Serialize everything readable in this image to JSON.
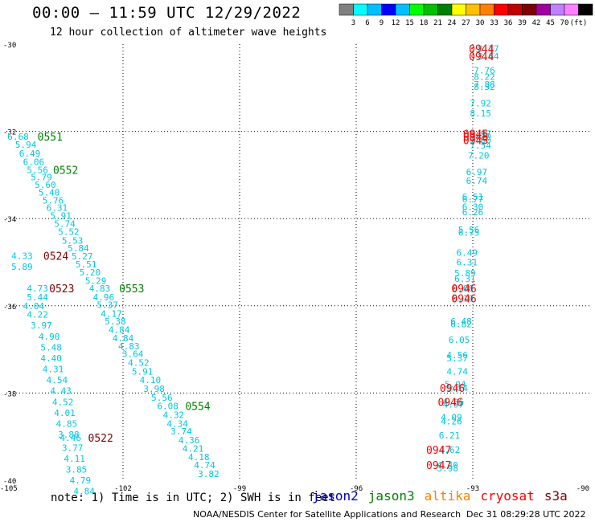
{
  "header": {
    "title": "00:00 — 11:59 UTC 12/29/2022",
    "subtitle": "12 hour collection of altimeter wave heights"
  },
  "colorbar": {
    "colors": [
      "#808080",
      "#00ffff",
      "#00bfff",
      "#0000ff",
      "#00c0ff",
      "#00ff00",
      "#00c000",
      "#008000",
      "#ffff00",
      "#ffc000",
      "#ff8000",
      "#ff0000",
      "#c00000",
      "#800000",
      "#a000a0",
      "#c080ff",
      "#ff80ff",
      "#000000"
    ],
    "labels": [
      "3",
      "6",
      "9",
      "12",
      "15",
      "18",
      "21",
      "24",
      "27",
      "30",
      "33",
      "36",
      "39",
      "42",
      "45",
      "70",
      "(ft)"
    ]
  },
  "footer": {
    "note": "note: 1) Time is in UTC; 2) SWH is in feet",
    "credit": "NOAA/NESDIS Center for Satellite Applications and Research",
    "timestamp": "Dec 31 08:29:28 UTC 2022"
  },
  "legend": [
    {
      "name": "jason2",
      "color": "#0000cc"
    },
    {
      "name": "jason3",
      "color": "#008000"
    },
    {
      "name": "altika",
      "color": "#ff8000"
    },
    {
      "name": "cryosat",
      "color": "#ff0000"
    },
    {
      "name": "s3a",
      "color": "#800000"
    }
  ],
  "chart_data": {
    "type": "scatter",
    "title": "00:00 — 11:59 UTC 12/29/2022",
    "xlim": [
      -105,
      -90
    ],
    "ylim": [
      -40,
      -30
    ],
    "xticks": [
      "-105",
      "-102",
      "-99",
      "-96",
      "-93",
      "-90"
    ],
    "yticks": [
      "-30",
      "-32",
      "-34",
      "-36",
      "-38",
      "-40"
    ],
    "grid": true,
    "swh_color": "#00c8e0",
    "swh_values": [
      {
        "x": -92.6,
        "y": -30.1,
        "v": "8.17"
      },
      {
        "x": -92.6,
        "y": -30.28,
        "v": "8.64"
      },
      {
        "x": -92.7,
        "y": -30.6,
        "v": "7.76"
      },
      {
        "x": -92.7,
        "y": -30.75,
        "v": "8.22"
      },
      {
        "x": -92.7,
        "y": -30.92,
        "v": "7.88"
      },
      {
        "x": -92.7,
        "y": -30.98,
        "v": "8.32"
      },
      {
        "x": -92.8,
        "y": -31.35,
        "v": "7.92"
      },
      {
        "x": -92.8,
        "y": -31.58,
        "v": "8.15"
      },
      {
        "x": -92.8,
        "y": -32.05,
        "v": "6.97"
      },
      {
        "x": -92.8,
        "y": -32.12,
        "v": "7.20"
      },
      {
        "x": -92.8,
        "y": -32.2,
        "v": "7.60"
      },
      {
        "x": -92.8,
        "y": -32.32,
        "v": "7.54"
      },
      {
        "x": -92.85,
        "y": -32.55,
        "v": "7.20"
      },
      {
        "x": -92.9,
        "y": -32.93,
        "v": "6.97"
      },
      {
        "x": -92.9,
        "y": -33.13,
        "v": "6.74"
      },
      {
        "x": -93.0,
        "y": -33.5,
        "v": "6.51"
      },
      {
        "x": -93.0,
        "y": -33.55,
        "v": "6.77"
      },
      {
        "x": -93.0,
        "y": -33.73,
        "v": "6.30"
      },
      {
        "x": -93.0,
        "y": -33.85,
        "v": "6.26"
      },
      {
        "x": -93.1,
        "y": -34.25,
        "v": "5.56"
      },
      {
        "x": -93.1,
        "y": -34.32,
        "v": "6.75"
      },
      {
        "x": -93.15,
        "y": -34.78,
        "v": "6.49"
      },
      {
        "x": -93.15,
        "y": -35.0,
        "v": "6.31"
      },
      {
        "x": -93.2,
        "y": -35.25,
        "v": "5.89"
      },
      {
        "x": -93.2,
        "y": -35.38,
        "v": "6.31"
      },
      {
        "x": -93.25,
        "y": -35.6,
        "v": "6.00"
      },
      {
        "x": -93.25,
        "y": -35.83,
        "v": "6.19"
      },
      {
        "x": -93.3,
        "y": -36.35,
        "v": "6.48"
      },
      {
        "x": -93.3,
        "y": -36.42,
        "v": "6.82"
      },
      {
        "x": -93.35,
        "y": -36.78,
        "v": "6.05"
      },
      {
        "x": -93.4,
        "y": -37.13,
        "v": "4.56"
      },
      {
        "x": -93.4,
        "y": -37.2,
        "v": "5.37"
      },
      {
        "x": -93.4,
        "y": -37.5,
        "v": "4.74"
      },
      {
        "x": -93.45,
        "y": -37.8,
        "v": "5.04"
      },
      {
        "x": -93.4,
        "y": -37.88,
        "v": "5.14"
      },
      {
        "x": -93.5,
        "y": -38.2,
        "v": "4.86"
      },
      {
        "x": -93.5,
        "y": -38.26,
        "v": "4.97"
      },
      {
        "x": -93.55,
        "y": -38.55,
        "v": "4.09"
      },
      {
        "x": -93.55,
        "y": -38.65,
        "v": "4.26"
      },
      {
        "x": -93.6,
        "y": -38.97,
        "v": "6.21"
      },
      {
        "x": -93.6,
        "y": -39.3,
        "v": "4.62"
      },
      {
        "x": -93.65,
        "y": -39.65,
        "v": "4.40"
      },
      {
        "x": -93.65,
        "y": -39.72,
        "v": "3.98"
      },
      {
        "x": -104.7,
        "y": -32.12,
        "v": "6.68"
      },
      {
        "x": -104.5,
        "y": -32.3,
        "v": "5.94"
      },
      {
        "x": -104.4,
        "y": -32.5,
        "v": "6.49"
      },
      {
        "x": -104.3,
        "y": -32.7,
        "v": "6.06"
      },
      {
        "x": -104.2,
        "y": -32.88,
        "v": "5.56"
      },
      {
        "x": -104.1,
        "y": -33.05,
        "v": "5.79"
      },
      {
        "x": -104.0,
        "y": -33.22,
        "v": "5.60"
      },
      {
        "x": -103.9,
        "y": -33.4,
        "v": "5.40"
      },
      {
        "x": -103.8,
        "y": -33.58,
        "v": "5.76"
      },
      {
        "x": -103.7,
        "y": -33.75,
        "v": "6.31"
      },
      {
        "x": -103.6,
        "y": -33.93,
        "v": "5.91"
      },
      {
        "x": -103.5,
        "y": -34.12,
        "v": "5.74"
      },
      {
        "x": -103.4,
        "y": -34.3,
        "v": "5.52"
      },
      {
        "x": -103.3,
        "y": -34.5,
        "v": "5.53"
      },
      {
        "x": -103.15,
        "y": -34.68,
        "v": "5.84"
      },
      {
        "x": -103.05,
        "y": -34.86,
        "v": "5.27"
      },
      {
        "x": -102.95,
        "y": -35.05,
        "v": "5.51"
      },
      {
        "x": -102.85,
        "y": -35.23,
        "v": "5.20"
      },
      {
        "x": -102.7,
        "y": -35.42,
        "v": "5.29"
      },
      {
        "x": -102.6,
        "y": -35.6,
        "v": "4.83"
      },
      {
        "x": -102.5,
        "y": -35.8,
        "v": "4.96"
      },
      {
        "x": -102.4,
        "y": -35.98,
        "v": "5.37"
      },
      {
        "x": -102.3,
        "y": -36.18,
        "v": "4.17"
      },
      {
        "x": -102.2,
        "y": -36.35,
        "v": "5.38"
      },
      {
        "x": -102.1,
        "y": -36.55,
        "v": "4.84"
      },
      {
        "x": -102.0,
        "y": -36.74,
        "v": "4.84"
      },
      {
        "x": -101.85,
        "y": -36.92,
        "v": "4.83"
      },
      {
        "x": -101.75,
        "y": -37.1,
        "v": "3.64"
      },
      {
        "x": -101.6,
        "y": -37.3,
        "v": "4.52"
      },
      {
        "x": -101.5,
        "y": -37.5,
        "v": "5.91"
      },
      {
        "x": -101.3,
        "y": -37.7,
        "v": "4.10"
      },
      {
        "x": -101.2,
        "y": -37.9,
        "v": "3.98"
      },
      {
        "x": -101.0,
        "y": -38.1,
        "v": "5.56"
      },
      {
        "x": -100.85,
        "y": -38.3,
        "v": "6.08"
      },
      {
        "x": -100.7,
        "y": -38.5,
        "v": "4.32"
      },
      {
        "x": -100.6,
        "y": -38.7,
        "v": "4.34"
      },
      {
        "x": -100.5,
        "y": -38.88,
        "v": "3.74"
      },
      {
        "x": -100.3,
        "y": -39.08,
        "v": "4.36"
      },
      {
        "x": -100.2,
        "y": -39.27,
        "v": "4.21"
      },
      {
        "x": -100.05,
        "y": -39.47,
        "v": "4.18"
      },
      {
        "x": -99.9,
        "y": -39.65,
        "v": "4.74"
      },
      {
        "x": -99.8,
        "y": -39.85,
        "v": "3.82"
      },
      {
        "x": -104.6,
        "y": -34.85,
        "v": "4.33"
      },
      {
        "x": -104.6,
        "y": -35.1,
        "v": "5.89"
      },
      {
        "x": -104.2,
        "y": -35.6,
        "v": "4.73"
      },
      {
        "x": -104.2,
        "y": -35.8,
        "v": "5.44"
      },
      {
        "x": -104.3,
        "y": -36.0,
        "v": "4.04"
      },
      {
        "x": -104.2,
        "y": -36.2,
        "v": "4.22"
      },
      {
        "x": -104.1,
        "y": -36.45,
        "v": "3.97"
      },
      {
        "x": -103.9,
        "y": -36.7,
        "v": "4.90"
      },
      {
        "x": -103.85,
        "y": -36.95,
        "v": "5.48"
      },
      {
        "x": -103.85,
        "y": -37.2,
        "v": "4.40"
      },
      {
        "x": -103.8,
        "y": -37.45,
        "v": "4.31"
      },
      {
        "x": -103.7,
        "y": -37.7,
        "v": "4.54"
      },
      {
        "x": -103.6,
        "y": -37.95,
        "v": "4.43"
      },
      {
        "x": -103.55,
        "y": -38.2,
        "v": "4.52"
      },
      {
        "x": -103.5,
        "y": -38.45,
        "v": "4.01"
      },
      {
        "x": -103.45,
        "y": -38.7,
        "v": "4.85"
      },
      {
        "x": -103.4,
        "y": -38.95,
        "v": "3.88"
      },
      {
        "x": -103.35,
        "y": -39.02,
        "v": "4.46"
      },
      {
        "x": -103.3,
        "y": -39.25,
        "v": "3.77"
      },
      {
        "x": -103.25,
        "y": -39.5,
        "v": "4.11"
      },
      {
        "x": -103.2,
        "y": -39.75,
        "v": "3.85"
      },
      {
        "x": -103.1,
        "y": -40.0,
        "v": "4.79"
      },
      {
        "x": -103.0,
        "y": -40.25,
        "v": "4.84"
      }
    ],
    "times": [
      {
        "x": -93.1,
        "y": -30.1,
        "v": "0944",
        "color": "#ff0000"
      },
      {
        "x": -93.1,
        "y": -30.28,
        "v": "0944",
        "color": "#ff0000"
      },
      {
        "x": -93.25,
        "y": -32.05,
        "v": "0945",
        "color": "#ff0000"
      },
      {
        "x": -93.25,
        "y": -32.12,
        "v": "0945",
        "color": "#ff0000"
      },
      {
        "x": -93.25,
        "y": -32.2,
        "v": "0945",
        "color": "#ff0000"
      },
      {
        "x": -93.55,
        "y": -35.6,
        "v": "0946",
        "color": "#ff0000"
      },
      {
        "x": -93.55,
        "y": -35.83,
        "v": "0946",
        "color": "#ff0000"
      },
      {
        "x": -93.85,
        "y": -37.88,
        "v": "0946",
        "color": "#ff0000"
      },
      {
        "x": -93.9,
        "y": -38.2,
        "v": "0946",
        "color": "#ff0000"
      },
      {
        "x": -94.2,
        "y": -39.3,
        "v": "0947",
        "color": "#ff0000"
      },
      {
        "x": -94.2,
        "y": -39.65,
        "v": "0947",
        "color": "#ff0000"
      },
      {
        "x": -104.2,
        "y": -32.12,
        "v": "0551",
        "color": "#008000"
      },
      {
        "x": -103.8,
        "y": -32.88,
        "v": "0552",
        "color": "#008000"
      },
      {
        "x": -102.1,
        "y": -35.6,
        "v": "0553",
        "color": "#008000"
      },
      {
        "x": -100.4,
        "y": -38.3,
        "v": "0554",
        "color": "#008000"
      },
      {
        "x": -104.05,
        "y": -34.85,
        "v": "0524",
        "color": "#800000"
      },
      {
        "x": -103.9,
        "y": -35.6,
        "v": "0523",
        "color": "#800000"
      },
      {
        "x": -102.9,
        "y": -39.02,
        "v": "0522",
        "color": "#800000"
      }
    ]
  }
}
